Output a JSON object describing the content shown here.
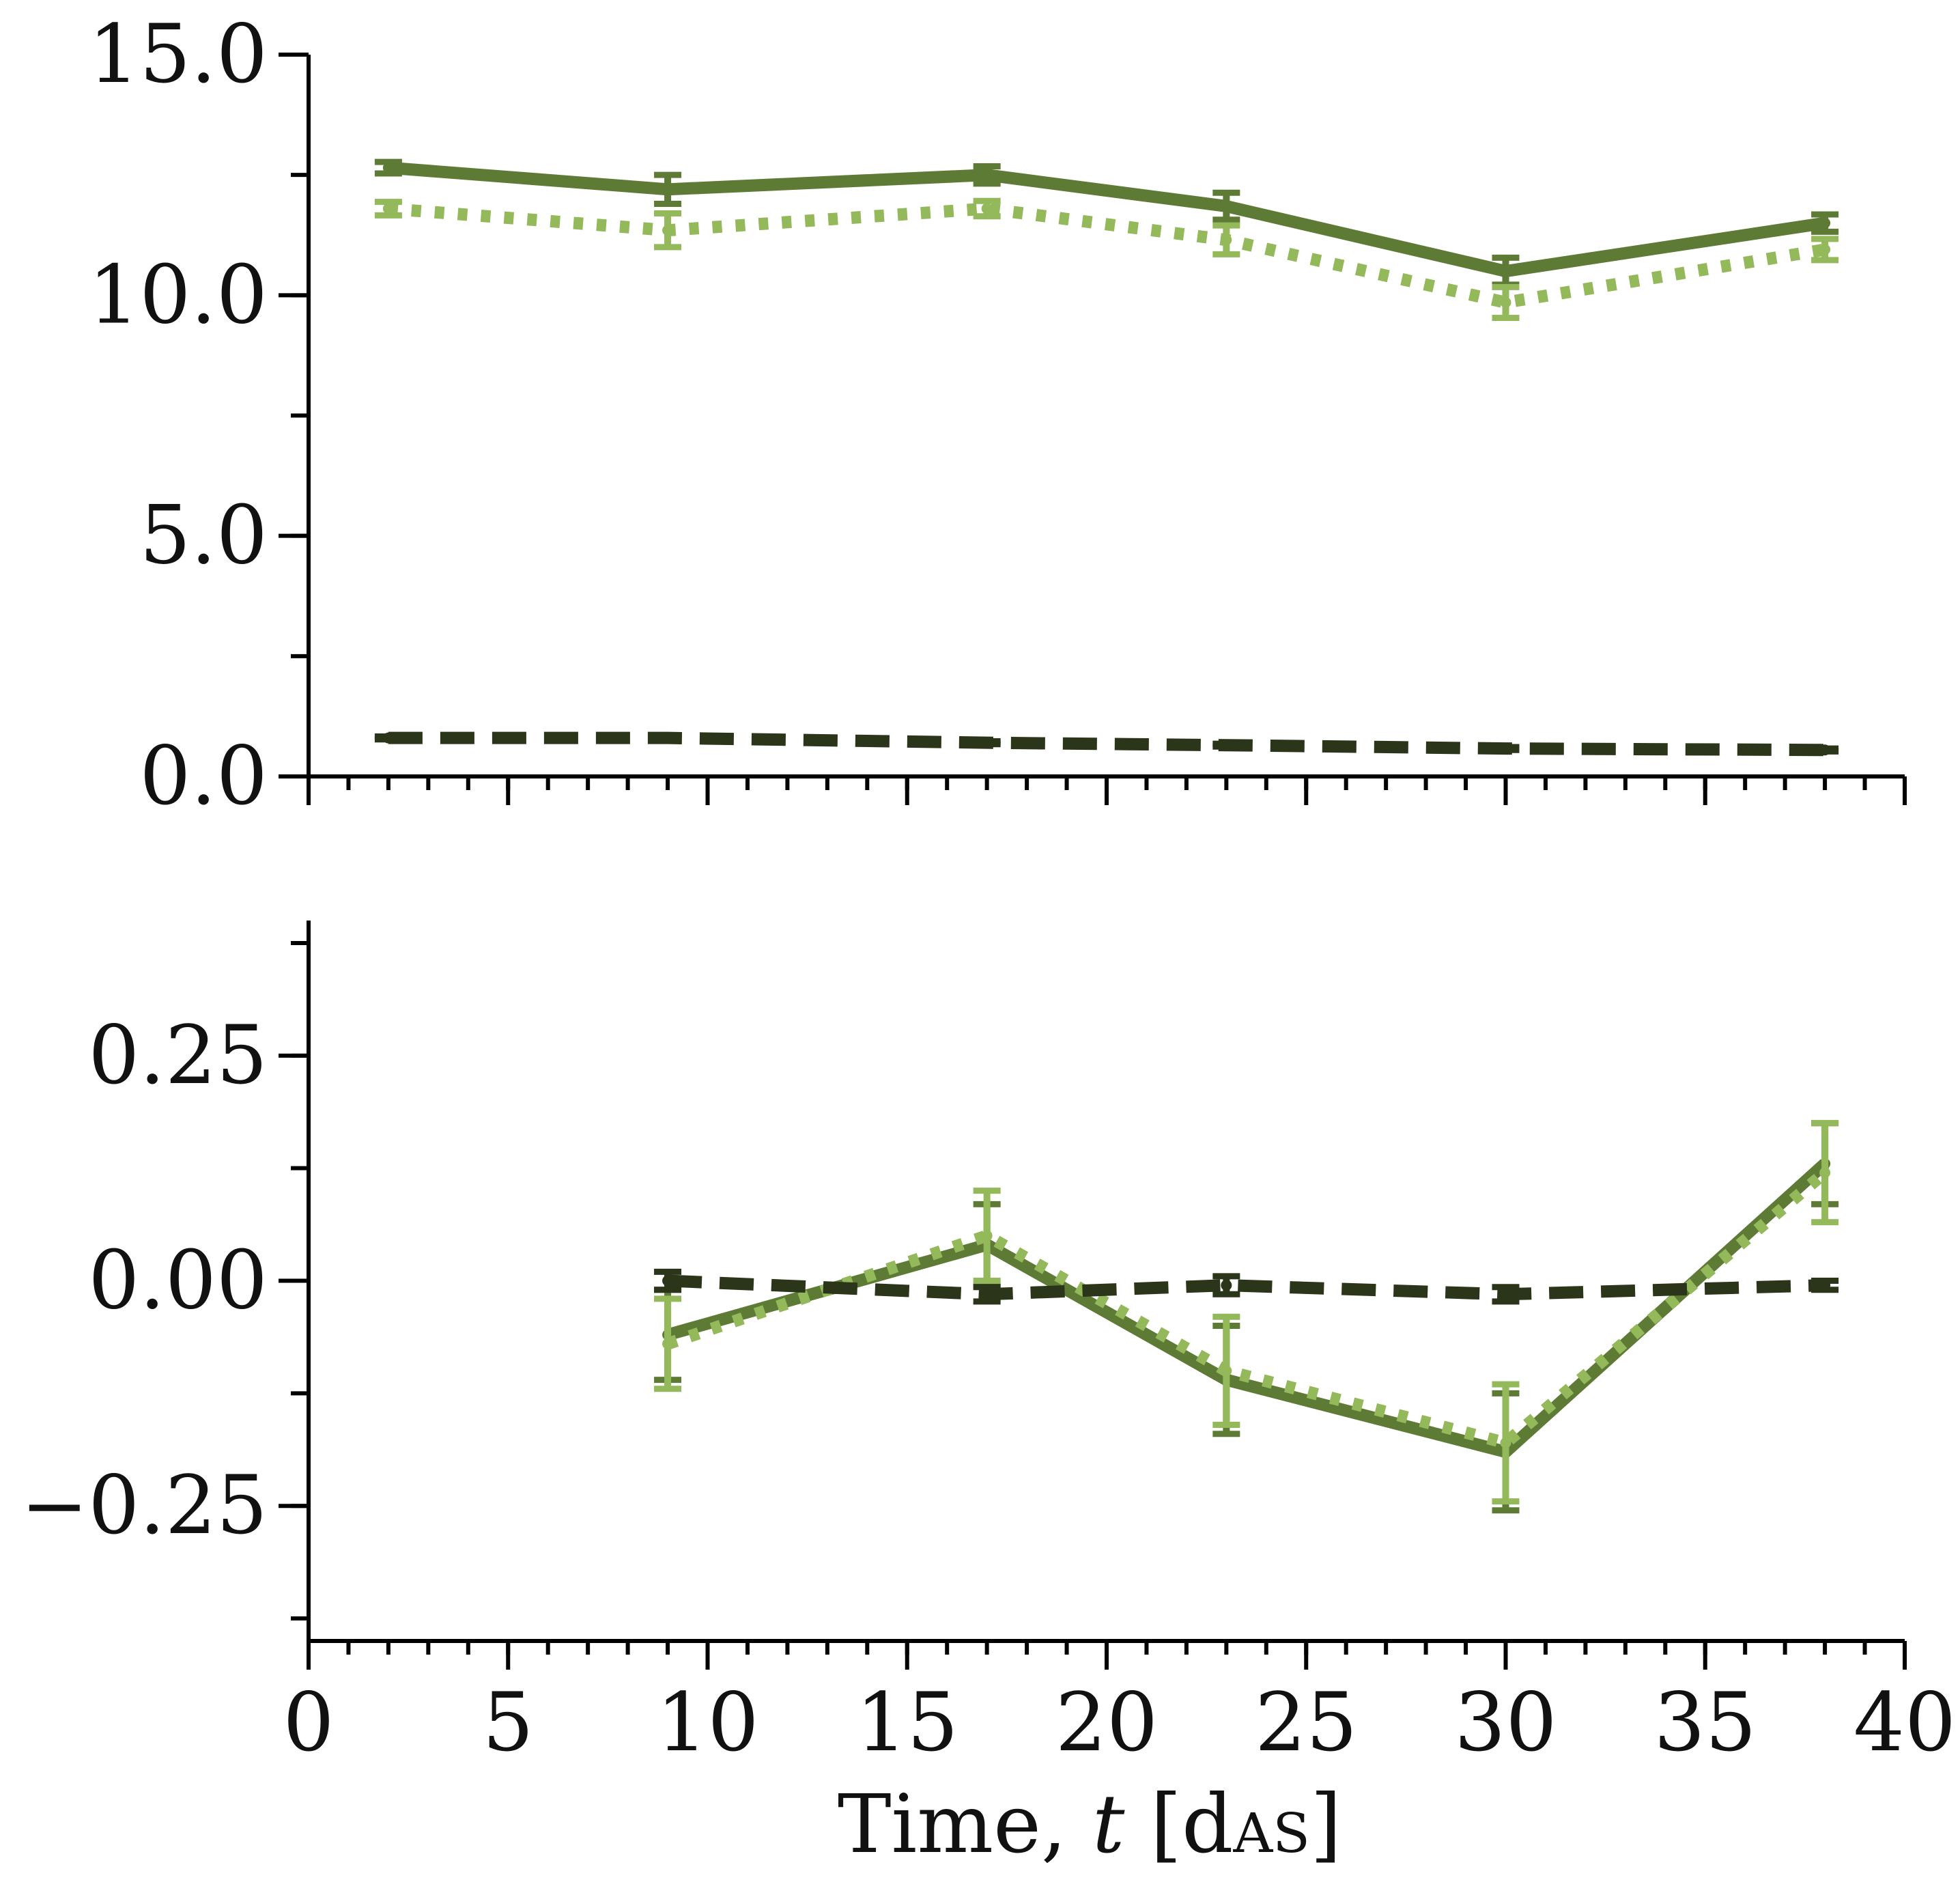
{
  "colors": {
    "solid": "#5e7b36",
    "dotted": "#93b95a",
    "dashed": "#2b3519",
    "axis": "#000000"
  },
  "chart_data": [
    {
      "type": "line",
      "xlim": [
        0,
        40
      ],
      "ylim": [
        0,
        15
      ],
      "yticks": [
        "0.0",
        "5.0",
        "10.0",
        "15.0"
      ],
      "ytick_values": [
        0,
        5,
        10,
        15
      ],
      "y_minor_step": 2.5,
      "x_minor_step": 1,
      "x_major_step": 5,
      "grid": false,
      "series": [
        {
          "style": "solid",
          "x": [
            2,
            9,
            17,
            23,
            30,
            38
          ],
          "y": [
            12.65,
            12.2,
            12.5,
            11.85,
            10.5,
            11.5
          ],
          "err": [
            0.12,
            0.3,
            0.18,
            0.28,
            0.28,
            0.18
          ]
        },
        {
          "style": "dotted",
          "x": [
            2,
            9,
            17,
            23,
            30,
            38
          ],
          "y": [
            11.8,
            11.35,
            11.8,
            11.15,
            9.85,
            10.95
          ],
          "err": [
            0.14,
            0.35,
            0.16,
            0.3,
            0.32,
            0.22
          ]
        },
        {
          "style": "dashed",
          "x": [
            2,
            9,
            17,
            23,
            30,
            38
          ],
          "y": [
            0.8,
            0.8,
            0.7,
            0.65,
            0.58,
            0.55
          ],
          "err": [
            0.03,
            0.03,
            0.03,
            0.03,
            0.03,
            0.03
          ]
        }
      ]
    },
    {
      "type": "line",
      "xlim": [
        0,
        40
      ],
      "ylim": [
        -0.4,
        0.4
      ],
      "yticks": [
        "−0.25",
        "0.00",
        "0.25"
      ],
      "ytick_values": [
        -0.25,
        0,
        0.25
      ],
      "y_minor_step": 0.125,
      "x_minor_step": 1,
      "x_major_step": 5,
      "xticks": [
        "0",
        "5",
        "10",
        "15",
        "20",
        "25",
        "30",
        "35",
        "40"
      ],
      "xtick_values": [
        0,
        5,
        10,
        15,
        20,
        25,
        30,
        35,
        40
      ],
      "xlabel_main": "Time, ",
      "xlabel_var": "t",
      "xlabel_unit_open": " [d",
      "xlabel_unit_sub": "AS",
      "xlabel_unit_close": "]",
      "grid": false,
      "series": [
        {
          "style": "solid",
          "x": [
            9,
            17,
            23,
            30,
            38
          ],
          "y": [
            -0.06,
            0.04,
            -0.11,
            -0.19,
            0.13
          ],
          "err": [
            0.05,
            0.045,
            0.06,
            0.065,
            0.045
          ]
        },
        {
          "style": "dotted",
          "x": [
            9,
            17,
            23,
            30,
            38
          ],
          "y": [
            -0.07,
            0.05,
            -0.1,
            -0.18,
            0.12
          ],
          "err": [
            0.05,
            0.05,
            0.06,
            0.065,
            0.055
          ]
        },
        {
          "style": "dashed",
          "x": [
            9,
            17,
            23,
            30,
            38
          ],
          "y": [
            0.0,
            -0.015,
            -0.005,
            -0.015,
            -0.005
          ],
          "err": [
            0.01,
            0.008,
            0.01,
            0.008,
            0.005
          ]
        }
      ]
    }
  ]
}
